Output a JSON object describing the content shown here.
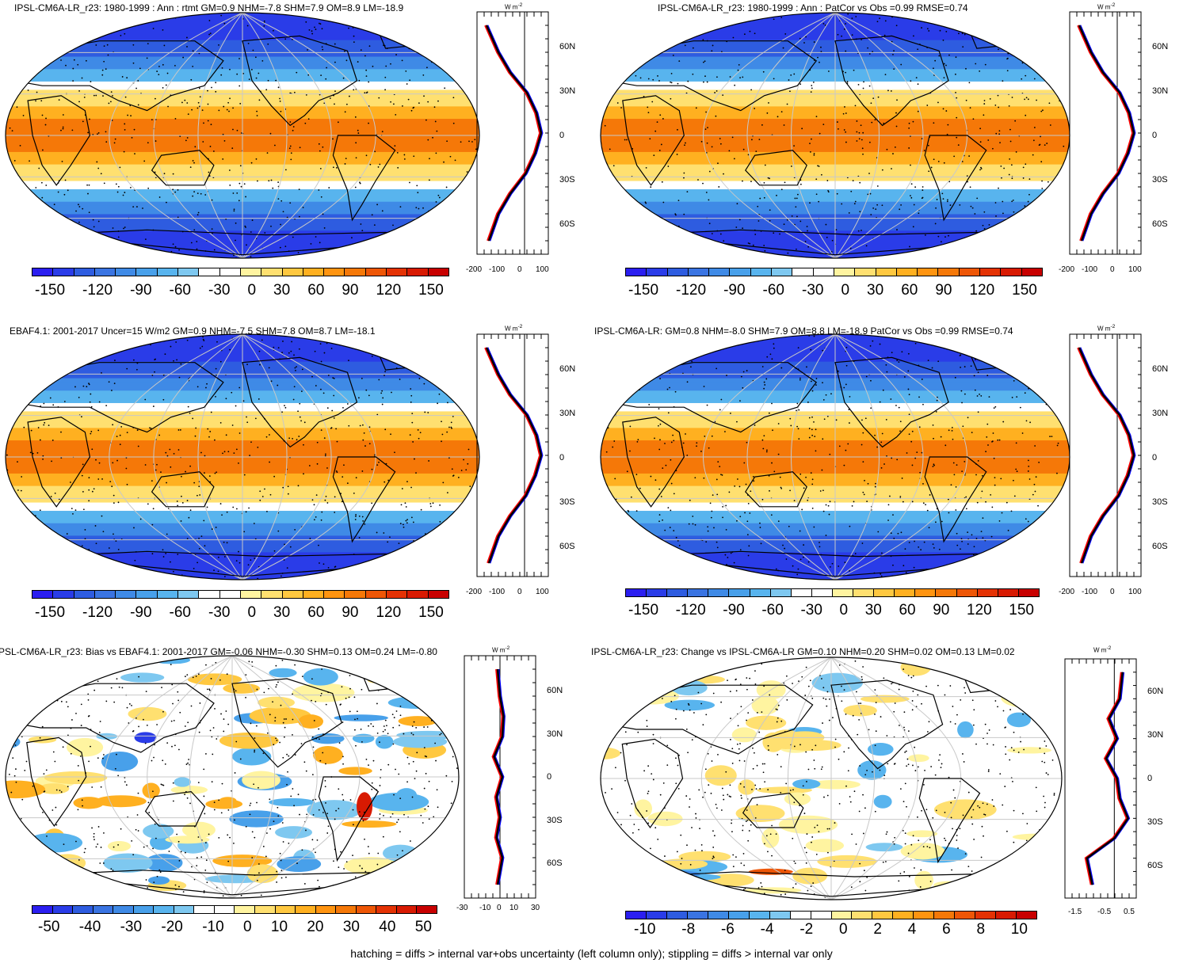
{
  "colors": {
    "scale": [
      "#2b1ef0",
      "#2a3ce8",
      "#2e5ce0",
      "#3a74e2",
      "#3f8ae6",
      "#48a0ea",
      "#58b4ee",
      "#7ec8f0",
      "#ffffff",
      "#ffffff",
      "#fff4a0",
      "#ffe070",
      "#ffc840",
      "#ffb020",
      "#ff9410",
      "#f57808",
      "#ee5606",
      "#e43204",
      "#d81a02",
      "#c80000"
    ],
    "obs_line": "#ff0000",
    "model_line": "#0000ff",
    "mean_line": "#000000",
    "land_outline": "#000000",
    "grid": "#c8c8c8"
  },
  "footnote": "hatching = diffs > internal var+obs uncertainty (left column only); stippling = diffs > internal var only",
  "panels": [
    {
      "title": "IPSL-CM6A-LR_r23: 1980-1999 : Ann : rtmt GM=0.9 NHM=-7.8 SHM=7.9 OM=8.9 LM=-18.9",
      "colorbar_labels": [
        "-150",
        "-120",
        "-90",
        "-60",
        "-30",
        "0",
        "30",
        "60",
        "90",
        "120",
        "150"
      ],
      "profile_x_labels": [
        "-200",
        "-100",
        "0",
        "100"
      ],
      "profile_unit": "W m",
      "profile_unit_sup": "-2",
      "lat_labels": [
        "60N",
        "30N",
        "0",
        "30S",
        "60S"
      ],
      "field_type": "net radiation"
    },
    {
      "title": "IPSL-CM6A-LR_r23: 1980-1999 : Ann : PatCor vs Obs =0.99 RMSE=0.74",
      "colorbar_labels": [
        "-150",
        "-120",
        "-90",
        "-60",
        "-30",
        "0",
        "30",
        "60",
        "90",
        "120",
        "150"
      ],
      "profile_x_labels": [
        "-200",
        "-100",
        "0",
        "100"
      ],
      "profile_unit": "W m",
      "profile_unit_sup": "-2",
      "lat_labels": [
        "60N",
        "30N",
        "0",
        "30S",
        "60S"
      ],
      "field_type": "net radiation"
    },
    {
      "title": "EBAF4.1: 2001-2017 Uncer=15 W/m2 GM=0.9 NHM=-7.5 SHM=7.8 OM=8.7 LM=-18.1",
      "colorbar_labels": [
        "-150",
        "-120",
        "-90",
        "-60",
        "-30",
        "0",
        "30",
        "60",
        "90",
        "120",
        "150"
      ],
      "profile_x_labels": [
        "-200",
        "-100",
        "0",
        "100"
      ],
      "profile_unit": "W m",
      "profile_unit_sup": "-2",
      "lat_labels": [
        "60N",
        "30N",
        "0",
        "30S",
        "60S"
      ],
      "field_type": "net radiation"
    },
    {
      "title": "IPSL-CM6A-LR: GM=0.8 NHM=-8.0 SHM=7.9 OM=8.8 LM=-18.9 PatCor vs Obs =0.99 RMSE=0.74",
      "colorbar_labels": [
        "-150",
        "-120",
        "-90",
        "-60",
        "-30",
        "0",
        "30",
        "60",
        "90",
        "120",
        "150"
      ],
      "profile_x_labels": [
        "-200",
        "-100",
        "0",
        "100"
      ],
      "profile_unit": "W m",
      "profile_unit_sup": "-2",
      "lat_labels": [
        "60N",
        "30N",
        "0",
        "30S",
        "60S"
      ],
      "field_type": "net radiation"
    },
    {
      "title": "PSL-CM6A-LR_r23: Bias vs EBAF4.1: 2001-2017 GM=-0.06 NHM=-0.30 SHM=0.13 OM=0.24 LM=-0.80",
      "colorbar_labels": [
        "-50",
        "-40",
        "-30",
        "-20",
        "-10",
        "0",
        "10",
        "20",
        "30",
        "40",
        "50"
      ],
      "profile_x_labels": [
        "-30",
        "-10",
        "0",
        "10",
        "30"
      ],
      "profile_unit": "W m",
      "profile_unit_sup": "-2",
      "lat_labels": [
        "60N",
        "30N",
        "0",
        "30S",
        "60S"
      ],
      "field_type": "bias"
    },
    {
      "title": "IPSL-CM6A-LR_r23: Change vs IPSL-CM6A-LR GM=0.10 NHM=0.20 SHM=0.02 OM=0.13 LM=0.02",
      "colorbar_labels": [
        "-10",
        "-8",
        "-6",
        "-4",
        "-2",
        "0",
        "2",
        "4",
        "6",
        "8",
        "10"
      ],
      "profile_x_labels": [
        "-1.5",
        "-0.5",
        "0.5"
      ],
      "profile_unit": "W m",
      "profile_unit_sup": "-2",
      "lat_labels": [
        "60N",
        "30N",
        "0",
        "30S",
        "60S"
      ],
      "field_type": "change"
    }
  ],
  "chart_data": [
    {
      "type": "heatmap",
      "title": "IPSL-CM6A-LR_r23: 1980-1999 : Ann : rtmt GM=0.9 NHM=-7.8 SHM=7.9 OM=8.9 LM=-18.9",
      "colorbar": {
        "min": -150,
        "max": 150,
        "ticks": [
          -150,
          -120,
          -90,
          -60,
          -30,
          0,
          30,
          60,
          90,
          120,
          150
        ]
      },
      "zonal_mean": {
        "lat": [
          80,
          60,
          45,
          30,
          15,
          0,
          -15,
          -30,
          -45,
          -60,
          -80
        ],
        "values": [
          -160,
          -110,
          -60,
          10,
          50,
          70,
          45,
          5,
          -60,
          -110,
          -150
        ],
        "xlim": [
          -200,
          100
        ]
      }
    },
    {
      "type": "heatmap",
      "title": "IPSL-CM6A-LR_r23: 1980-1999 : Ann : PatCor vs Obs =0.99 RMSE=0.74",
      "colorbar": {
        "min": -150,
        "max": 150,
        "ticks": [
          -150,
          -120,
          -90,
          -60,
          -30,
          0,
          30,
          60,
          90,
          120,
          150
        ]
      },
      "zonal_mean": {
        "lat": [
          80,
          60,
          45,
          30,
          15,
          0,
          -15,
          -30,
          -45,
          -60,
          -80
        ],
        "values": [
          -160,
          -110,
          -60,
          10,
          50,
          70,
          45,
          5,
          -60,
          -110,
          -150
        ],
        "xlim": [
          -200,
          100
        ]
      }
    },
    {
      "type": "heatmap",
      "title": "EBAF4.1: 2001-2017 Uncer=15 W/m2 GM=0.9 NHM=-7.5 SHM=7.8 OM=8.7 LM=-18.1",
      "colorbar": {
        "min": -150,
        "max": 150,
        "ticks": [
          -150,
          -120,
          -90,
          -60,
          -30,
          0,
          30,
          60,
          90,
          120,
          150
        ]
      },
      "zonal_mean": {
        "lat": [
          80,
          60,
          45,
          30,
          15,
          0,
          -15,
          -30,
          -45,
          -60,
          -80
        ],
        "values": [
          -160,
          -110,
          -60,
          10,
          50,
          70,
          45,
          5,
          -60,
          -110,
          -150
        ],
        "xlim": [
          -200,
          100
        ]
      }
    },
    {
      "type": "heatmap",
      "title": "IPSL-CM6A-LR: GM=0.8 NHM=-8.0 SHM=7.9 OM=8.8 LM=-18.9 PatCor vs Obs =0.99 RMSE=0.74",
      "colorbar": {
        "min": -150,
        "max": 150,
        "ticks": [
          -150,
          -120,
          -90,
          -60,
          -30,
          0,
          30,
          60,
          90,
          120,
          150
        ]
      },
      "zonal_mean": {
        "lat": [
          80,
          60,
          45,
          30,
          15,
          0,
          -15,
          -30,
          -45,
          -60,
          -80
        ],
        "values": [
          -160,
          -110,
          -60,
          10,
          50,
          70,
          45,
          5,
          -60,
          -110,
          -150
        ],
        "xlim": [
          -200,
          100
        ]
      }
    },
    {
      "type": "heatmap",
      "title": "PSL-CM6A-LR_r23: Bias vs EBAF4.1: 2001-2017 GM=-0.06 NHM=-0.30 SHM=0.13 OM=0.24 LM=-0.80",
      "colorbar": {
        "min": -50,
        "max": 50,
        "ticks": [
          -50,
          -40,
          -30,
          -20,
          -10,
          0,
          10,
          20,
          30,
          40,
          50
        ]
      },
      "zonal_mean": {
        "lat": [
          80,
          60,
          45,
          30,
          15,
          0,
          -15,
          -30,
          -45,
          -60,
          -80
        ],
        "values": [
          -2,
          0,
          3,
          2,
          -5,
          2,
          -3,
          0,
          -3,
          2,
          -2
        ],
        "xlim": [
          -30,
          30
        ]
      }
    },
    {
      "type": "heatmap",
      "title": "IPSL-CM6A-LR_r23: Change vs IPSL-CM6A-LR GM=0.10 NHM=0.20 SHM=0.02 OM=0.13 LM=0.02",
      "colorbar": {
        "min": -10,
        "max": 10,
        "ticks": [
          -10,
          -8,
          -6,
          -4,
          -2,
          0,
          2,
          4,
          6,
          8,
          10
        ]
      },
      "zonal_mean": {
        "lat": [
          80,
          60,
          45,
          30,
          15,
          0,
          -15,
          -30,
          -45,
          -60,
          -80
        ],
        "values": [
          0.3,
          0.2,
          -0.2,
          0.1,
          -0.3,
          0.1,
          0.2,
          0.5,
          0.0,
          -1.0,
          -0.8
        ],
        "xlim": [
          -1.8,
          0.8
        ]
      }
    }
  ]
}
